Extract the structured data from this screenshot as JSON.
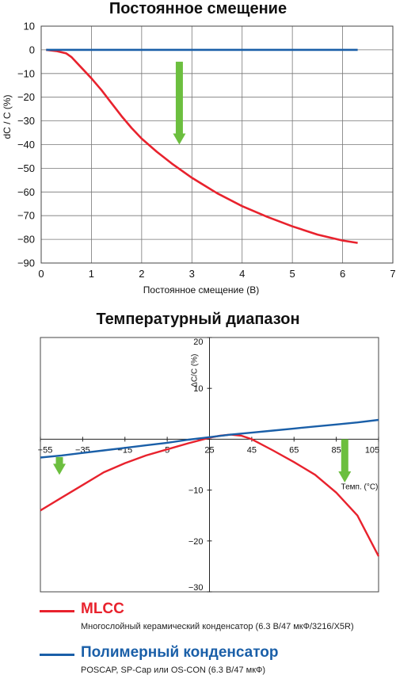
{
  "chart_data": [
    {
      "type": "line",
      "title": "Постоянное смещение",
      "xlabel": "Постоянное смещение (В)",
      "ylabel": "dC / C (%)",
      "xlim": [
        0,
        7
      ],
      "ylim": [
        -90,
        10
      ],
      "xticks": [
        0,
        1,
        2,
        3,
        4,
        5,
        6,
        7
      ],
      "yticks": [
        10,
        0,
        -10,
        -20,
        -30,
        -40,
        -50,
        -60,
        -70,
        -80,
        -90
      ],
      "grid": true,
      "series": [
        {
          "key": "mlcc",
          "color": "#e8222d",
          "x": [
            0.1,
            0.3,
            0.5,
            0.6,
            0.8,
            1.0,
            1.2,
            1.4,
            1.6,
            1.8,
            2.0,
            2.3,
            2.6,
            3.0,
            3.5,
            4.0,
            4.5,
            5.0,
            5.5,
            6.0,
            6.3
          ],
          "y": [
            0,
            -0.5,
            -1.5,
            -3,
            -7.5,
            -12,
            -17,
            -22.5,
            -28,
            -33,
            -37.5,
            -43,
            -48,
            -54,
            -60.5,
            -66,
            -70.5,
            -74.5,
            -78,
            -80.5,
            -81.5
          ]
        },
        {
          "key": "polymer",
          "color": "#1a5fa8",
          "x": [
            0.1,
            6.3
          ],
          "y": [
            0,
            0
          ]
        }
      ],
      "annotations": [
        {
          "type": "arrow",
          "color": "#6cbf3f",
          "x": 2.75,
          "y_from": -5,
          "y_to": -40
        }
      ]
    },
    {
      "type": "line",
      "title": "Температурный диапазон",
      "xlabel": "Темп. (°C)",
      "ylabel": "ΔC/C (%)",
      "xlim": [
        -55,
        105
      ],
      "ylim": [
        -30,
        20
      ],
      "xticks": [
        -55,
        -35,
        -15,
        5,
        25,
        45,
        65,
        85,
        105
      ],
      "yticks": [
        20,
        10,
        0,
        -10,
        -20,
        -30
      ],
      "grid": false,
      "series": [
        {
          "key": "mlcc",
          "color": "#e8222d",
          "x": [
            -55,
            -45,
            -35,
            -25,
            -15,
            -5,
            5,
            15,
            25,
            30,
            35,
            40,
            45,
            55,
            65,
            75,
            85,
            95,
            105
          ],
          "y": [
            -14,
            -11.5,
            -9,
            -6.5,
            -4.7,
            -3.2,
            -2,
            -0.8,
            0.3,
            0.7,
            0.9,
            0.7,
            0,
            -2.2,
            -4.5,
            -7,
            -10.5,
            -15,
            -23
          ]
        },
        {
          "key": "polymer",
          "color": "#1a5fa8",
          "x": [
            -55,
            -45,
            -35,
            -25,
            -15,
            -5,
            5,
            15,
            25,
            35,
            45,
            55,
            65,
            75,
            85,
            95,
            105
          ],
          "y": [
            -3.6,
            -3.2,
            -2.7,
            -2.2,
            -1.7,
            -1.2,
            -0.7,
            -0.1,
            0.4,
            0.9,
            1.3,
            1.7,
            2.1,
            2.5,
            2.9,
            3.3,
            3.8
          ]
        }
      ],
      "annotations": [
        {
          "type": "arrow",
          "color": "#6cbf3f",
          "x": -46,
          "y_from": -3.5,
          "y_to": -7
        },
        {
          "type": "arrow",
          "color": "#6cbf3f",
          "x": 89,
          "y_from": 0,
          "y_to": -8.5
        }
      ]
    }
  ],
  "legend": {
    "mlcc": {
      "name": "MLCC",
      "color": "#e8222d",
      "desc": "Многослойный керамический конденсатор (6.3 В/47 мкФ/3216/X5R)"
    },
    "polymer": {
      "name": "Полимерный конденсатор",
      "color": "#1a5fa8",
      "desc": "POSCAP, SP-Cap или OS-CON (6.3 В/47 мкФ)"
    }
  }
}
